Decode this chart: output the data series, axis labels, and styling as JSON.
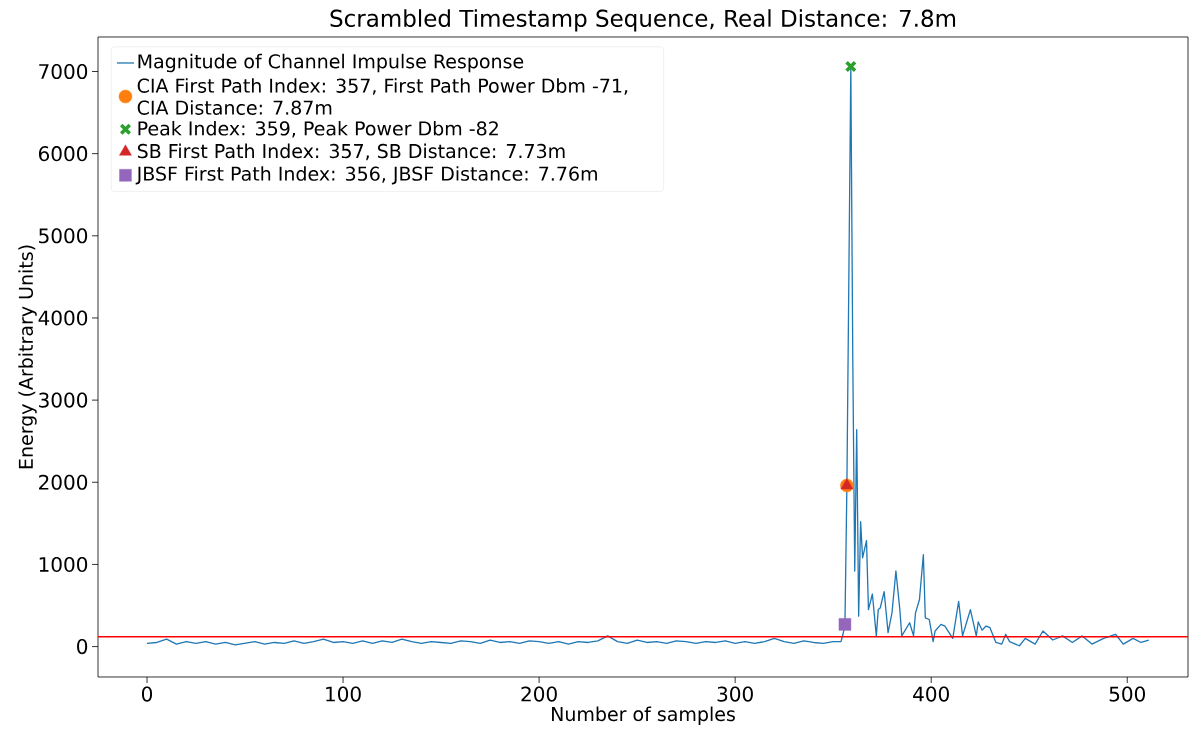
{
  "chart_data": {
    "type": "line",
    "title": "Scrambled Timestamp Sequence, Real Distance: 7.8m",
    "xlabel": "Number of samples",
    "ylabel": "Energy (Arbitrary Units)",
    "xlim": [
      -25,
      531
    ],
    "ylim": [
      -370,
      7420
    ],
    "xticks": [
      0,
      100,
      200,
      300,
      400,
      500
    ],
    "yticks": [
      0,
      1000,
      2000,
      3000,
      4000,
      5000,
      6000,
      7000
    ],
    "grid": false,
    "legend": "top left",
    "ref_lines": [
      {
        "axis": "y",
        "value": 120,
        "color": "#ff0000"
      }
    ],
    "series": [
      {
        "name": "Magnitude of Channel Impulse Response",
        "color": "#1f77b4",
        "marker": "none",
        "x": [
          0,
          5,
          10,
          15,
          20,
          25,
          30,
          35,
          40,
          45,
          50,
          55,
          60,
          65,
          70,
          75,
          80,
          85,
          90,
          95,
          100,
          105,
          110,
          115,
          120,
          125,
          130,
          135,
          140,
          145,
          150,
          155,
          160,
          165,
          170,
          175,
          180,
          185,
          190,
          195,
          200,
          205,
          210,
          215,
          220,
          225,
          230,
          235,
          240,
          245,
          250,
          255,
          260,
          265,
          270,
          275,
          280,
          285,
          290,
          295,
          300,
          305,
          310,
          315,
          320,
          325,
          330,
          335,
          340,
          345,
          350,
          354,
          355,
          356,
          357,
          358,
          359,
          360,
          361,
          362,
          363,
          364,
          365,
          367,
          368,
          370,
          372,
          373,
          374,
          376,
          378,
          380,
          382,
          384,
          385,
          389,
          391,
          392,
          394,
          396,
          397,
          399,
          401,
          402,
          405,
          407,
          411,
          414,
          416,
          418,
          420,
          423,
          424,
          426,
          428,
          430,
          431,
          433,
          436,
          438,
          440,
          445,
          448,
          453,
          457,
          462,
          467,
          472,
          477,
          482,
          488,
          494,
          498,
          503,
          507,
          511
        ],
        "values": [
          40,
          50,
          90,
          30,
          60,
          40,
          60,
          30,
          50,
          20,
          40,
          60,
          30,
          50,
          40,
          70,
          40,
          60,
          90,
          50,
          60,
          40,
          70,
          40,
          70,
          50,
          90,
          60,
          40,
          60,
          50,
          40,
          70,
          60,
          40,
          80,
          50,
          60,
          40,
          70,
          60,
          40,
          60,
          30,
          60,
          50,
          70,
          130,
          60,
          40,
          80,
          50,
          60,
          40,
          70,
          60,
          40,
          60,
          50,
          70,
          40,
          60,
          40,
          60,
          100,
          60,
          40,
          70,
          50,
          40,
          60,
          60,
          150,
          270,
          1960,
          4500,
          7060,
          3500,
          920,
          2640,
          370,
          1520,
          1080,
          1290,
          450,
          640,
          130,
          450,
          470,
          670,
          170,
          410,
          920,
          450,
          130,
          290,
          130,
          410,
          570,
          1120,
          350,
          330,
          60,
          190,
          270,
          250,
          100,
          550,
          130,
          290,
          450,
          130,
          300,
          200,
          250,
          230,
          170,
          50,
          30,
          150,
          60,
          10,
          100,
          30,
          190,
          80,
          130,
          50,
          130,
          30,
          100,
          150,
          30,
          100,
          50,
          80
        ]
      },
      {
        "name": "CIA First Path Index: 357, First Path Power Dbm -71, CIA Distance: 7.87m",
        "type": "scatter",
        "color": "#ff7f0e",
        "marker": "circle",
        "x": [
          357
        ],
        "values": [
          1960
        ]
      },
      {
        "name": "Peak Index: 359, Peak Power Dbm -82",
        "type": "scatter",
        "color": "#2ca02c",
        "marker": "cross",
        "x": [
          359
        ],
        "values": [
          7060
        ]
      },
      {
        "name": "SB First Path Index: 357, SB Distance: 7.73m",
        "type": "scatter",
        "color": "#d62728",
        "marker": "triangle",
        "x": [
          357
        ],
        "values": [
          1960
        ]
      },
      {
        "name": "JBSF First Path Index: 356, JBSF Distance: 7.76m",
        "type": "scatter",
        "color": "#9467bd",
        "marker": "square",
        "x": [
          356
        ],
        "values": [
          270
        ]
      }
    ]
  }
}
